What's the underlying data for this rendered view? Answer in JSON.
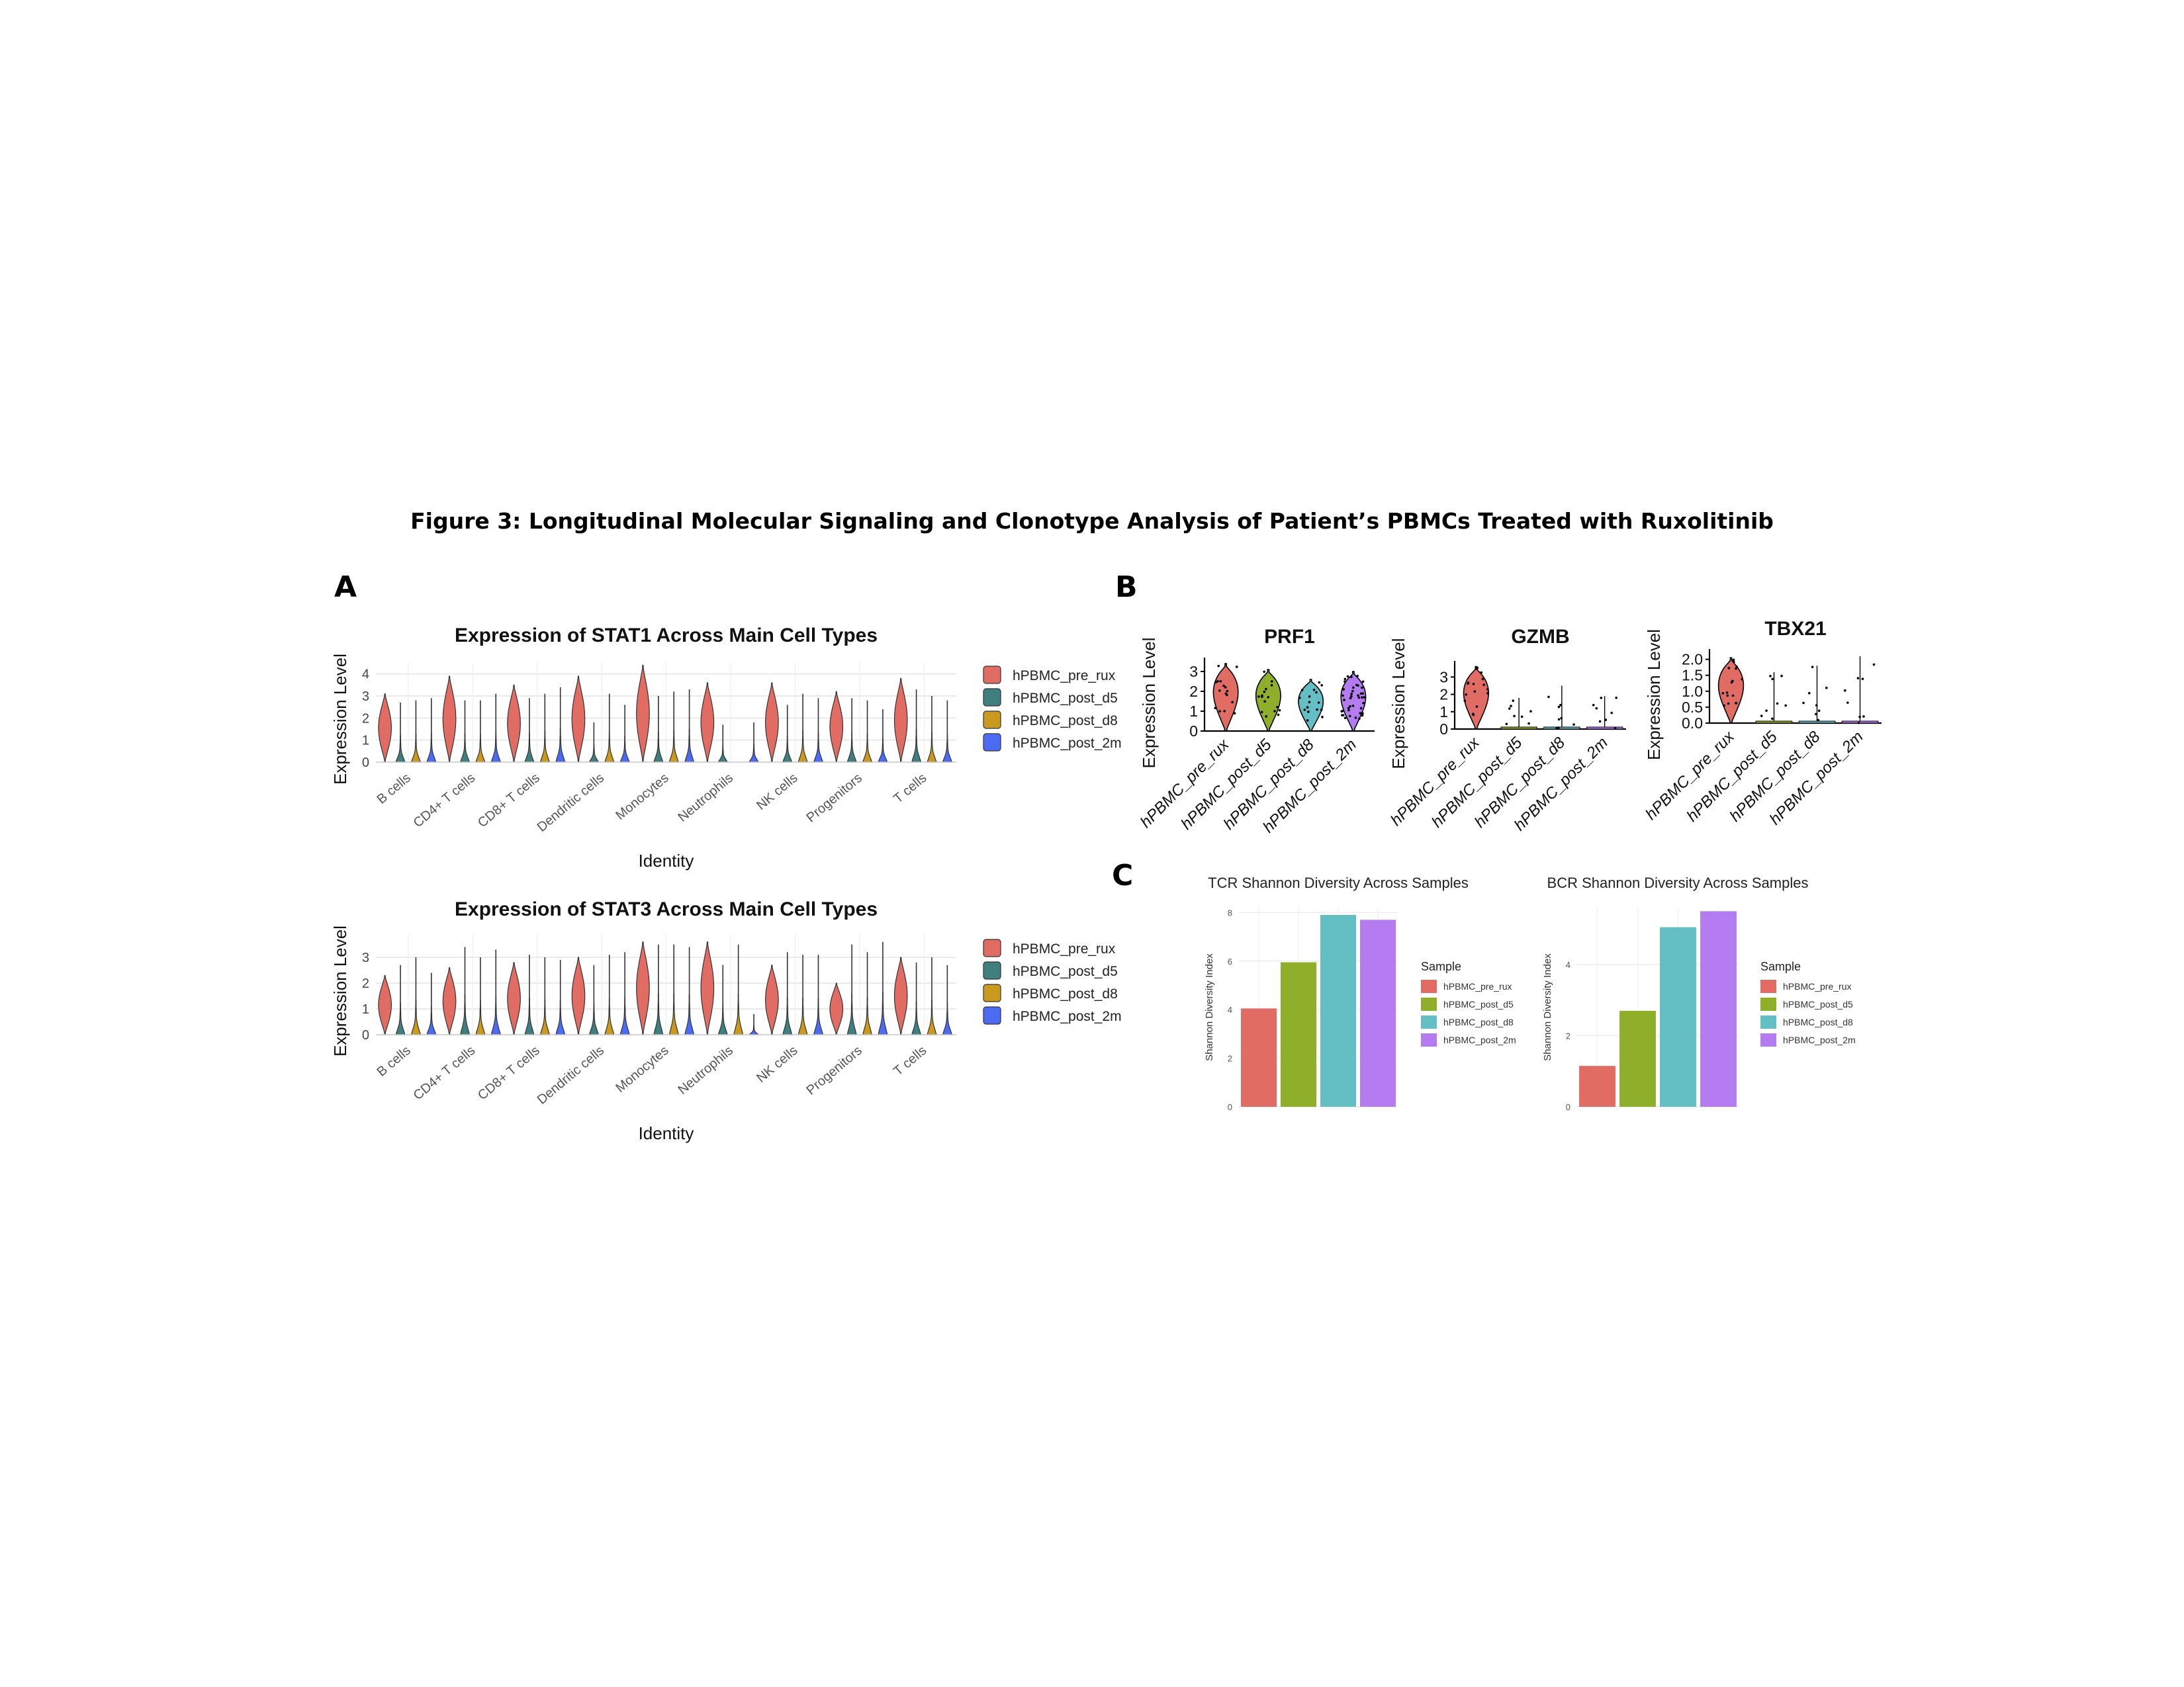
{
  "figure": {
    "title": "Figure 3: Longitudinal Molecular Signaling and Clonotype Analysis of Patient’s PBMCs Treated with Ruxolitinib",
    "panel_labels": [
      "A",
      "B",
      "C"
    ]
  },
  "colors": {
    "hPBMC_pre_rux": "#E06C63",
    "hPBMC_post_d5_violin": "#3F7F7F",
    "hPBMC_post_d8_violin": "#C99A1E",
    "hPBMC_post_2m_violin": "#4A6BF2",
    "hPBMC_post_d5_bar": "#8FAF2A",
    "hPBMC_post_d8_bar": "#63BFC4",
    "hPBMC_post_2m_bar": "#B57CF2"
  },
  "chart_data": [
    {
      "id": "stat1",
      "type": "violin",
      "title": "Expression of STAT1 Across Main Cell Types",
      "xlabel": "Identity",
      "ylabel": "Expression Level",
      "ylim": [
        0,
        4.5
      ],
      "yticks": [
        "0",
        "1",
        "2",
        "3",
        "4"
      ],
      "categories": [
        "B cells",
        "CD4+ T cells",
        "CD8+ T cells",
        "Dendritic cells",
        "Monocytes",
        "Neutrophils",
        "NK cells",
        "Progenitors",
        "T cells"
      ],
      "legend": [
        "hPBMC_pre_rux",
        "hPBMC_post_d5",
        "hPBMC_post_d8",
        "hPBMC_post_2m"
      ],
      "series": [
        {
          "name": "hPBMC_pre_rux",
          "max": [
            3.1,
            3.9,
            3.5,
            3.9,
            4.4,
            3.6,
            3.6,
            3.2,
            3.8
          ]
        },
        {
          "name": "hPBMC_post_d5",
          "max": [
            2.7,
            2.8,
            2.9,
            1.8,
            3.0,
            1.7,
            2.6,
            2.9,
            3.3
          ]
        },
        {
          "name": "hPBMC_post_d8",
          "max": [
            2.8,
            2.8,
            3.1,
            3.1,
            3.2,
            0,
            3.1,
            2.8,
            3.0
          ]
        },
        {
          "name": "hPBMC_post_2m",
          "max": [
            2.9,
            3.1,
            3.4,
            2.6,
            3.3,
            1.8,
            2.9,
            2.4,
            2.8
          ]
        }
      ]
    },
    {
      "id": "stat3",
      "type": "violin",
      "title": "Expression of STAT3 Across Main Cell Types",
      "xlabel": "Identity",
      "ylabel": "Expression Level",
      "ylim": [
        0,
        3.9
      ],
      "yticks": [
        "0",
        "1",
        "2",
        "3"
      ],
      "categories": [
        "B cells",
        "CD4+ T cells",
        "CD8+ T cells",
        "Dendritic cells",
        "Monocytes",
        "Neutrophils",
        "NK cells",
        "Progenitors",
        "T cells"
      ],
      "legend": [
        "hPBMC_pre_rux",
        "hPBMC_post_d5",
        "hPBMC_post_d8",
        "hPBMC_post_2m"
      ],
      "series": [
        {
          "name": "hPBMC_pre_rux",
          "max": [
            2.3,
            2.6,
            2.8,
            3.0,
            3.6,
            3.6,
            2.7,
            2.0,
            3.0
          ]
        },
        {
          "name": "hPBMC_post_d5",
          "max": [
            2.7,
            3.4,
            3.1,
            2.7,
            3.5,
            2.7,
            3.2,
            3.5,
            2.8
          ]
        },
        {
          "name": "hPBMC_post_d8",
          "max": [
            3.0,
            3.0,
            3.0,
            3.1,
            3.5,
            3.5,
            3.1,
            3.2,
            3.0
          ]
        },
        {
          "name": "hPBMC_post_2m",
          "max": [
            2.4,
            3.3,
            2.9,
            3.2,
            3.4,
            0.8,
            3.1,
            3.6,
            2.7
          ]
        }
      ]
    },
    {
      "id": "prf1",
      "type": "violin",
      "title": "PRF1",
      "ylabel": "Expression Level",
      "ylim": [
        0,
        3.5
      ],
      "yticks": [
        "0",
        "1",
        "2",
        "3"
      ],
      "categories": [
        "hPBMC_pre_rux",
        "hPBMC_post_d5",
        "hPBMC_post_d8",
        "hPBMC_post_2m"
      ],
      "values_max": [
        3.4,
        3.1,
        2.6,
        3.0
      ]
    },
    {
      "id": "gzmb",
      "type": "violin",
      "title": "GZMB",
      "ylabel": "Expression Level",
      "ylim": [
        0,
        3.7
      ],
      "yticks": [
        "0",
        "1",
        "2",
        "3"
      ],
      "categories": [
        "hPBMC_pre_rux",
        "hPBMC_post_d5",
        "hPBMC_post_d8",
        "hPBMC_post_2m"
      ],
      "values_max": [
        3.6,
        1.8,
        2.5,
        1.9
      ]
    },
    {
      "id": "tbx21",
      "type": "violin",
      "title": "TBX21",
      "ylabel": "Expression Level",
      "ylim": [
        0,
        2.2
      ],
      "yticks": [
        "0.0",
        "0.5",
        "1.0",
        "1.5",
        "2.0"
      ],
      "categories": [
        "hPBMC_pre_rux",
        "hPBMC_post_d5",
        "hPBMC_post_d8",
        "hPBMC_post_2m"
      ],
      "values_max": [
        2.05,
        1.6,
        1.8,
        2.1
      ]
    },
    {
      "id": "tcr",
      "type": "bar",
      "title": "TCR Shannon Diversity Across Samples",
      "ylabel": "Shannon Diversity Index",
      "ylim": [
        0,
        8.2
      ],
      "yticks": [
        0,
        2,
        4,
        6,
        8
      ],
      "categories": [
        "hPBMC_pre_rux",
        "hPBMC_post_d5",
        "hPBMC_post_d8",
        "hPBMC_post_2m"
      ],
      "values": [
        4.05,
        5.95,
        7.9,
        7.7
      ],
      "legend_title": "Sample"
    },
    {
      "id": "bcr",
      "type": "bar",
      "title": "BCR Shannon Diversity Across Samples",
      "ylabel": "Shannon Diversity Index",
      "ylim": [
        0,
        5.6
      ],
      "yticks": [
        0,
        2,
        4
      ],
      "categories": [
        "hPBMC_pre_rux",
        "hPBMC_post_d5",
        "hPBMC_post_d8",
        "hPBMC_post_2m"
      ],
      "values": [
        1.15,
        2.7,
        5.05,
        5.5
      ],
      "legend_title": "Sample"
    }
  ]
}
